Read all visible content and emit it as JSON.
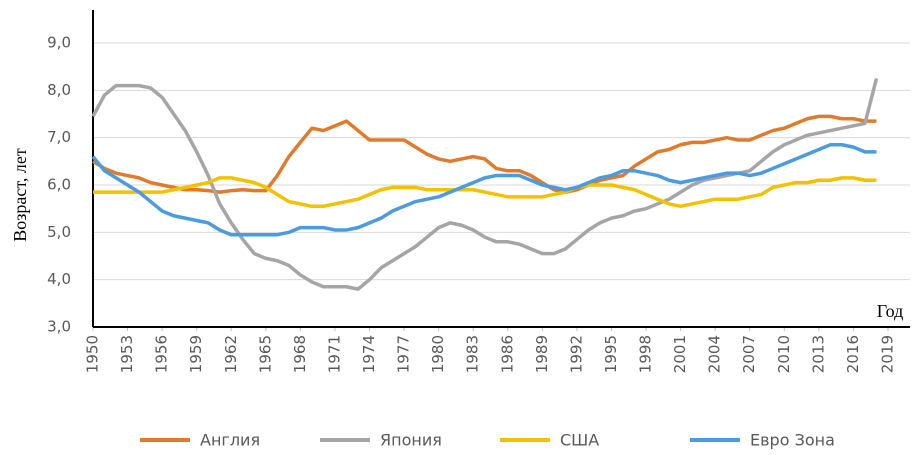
{
  "chart_data": {
    "type": "line",
    "y_label": "Возраст, лет",
    "x_label": "Год",
    "x": [
      1950,
      1951,
      1952,
      1953,
      1954,
      1955,
      1956,
      1957,
      1958,
      1959,
      1960,
      1961,
      1962,
      1963,
      1964,
      1965,
      1966,
      1967,
      1968,
      1969,
      1970,
      1971,
      1972,
      1973,
      1974,
      1975,
      1976,
      1977,
      1978,
      1979,
      1980,
      1981,
      1982,
      1983,
      1984,
      1985,
      1986,
      1987,
      1988,
      1989,
      1990,
      1991,
      1992,
      1993,
      1994,
      1995,
      1996,
      1997,
      1998,
      1999,
      2000,
      2001,
      2002,
      2003,
      2004,
      2005,
      2006,
      2007,
      2008,
      2009,
      2010,
      2011,
      2012,
      2013,
      2014,
      2015,
      2016,
      2017,
      2018
    ],
    "series": [
      {
        "name": "Англия",
        "color": "#e07b2c",
        "values": [
          6.5,
          6.35,
          6.25,
          6.2,
          6.15,
          6.05,
          6.0,
          5.95,
          5.9,
          5.9,
          5.88,
          5.85,
          5.88,
          5.9,
          5.88,
          5.88,
          6.2,
          6.6,
          6.9,
          7.2,
          7.15,
          7.25,
          7.35,
          7.15,
          6.95,
          6.95,
          6.95,
          6.95,
          6.8,
          6.65,
          6.55,
          6.5,
          6.55,
          6.6,
          6.55,
          6.35,
          6.3,
          6.3,
          6.2,
          6.05,
          5.9,
          5.85,
          5.9,
          6.0,
          6.1,
          6.15,
          6.2,
          6.4,
          6.55,
          6.7,
          6.75,
          6.85,
          6.9,
          6.9,
          6.95,
          7.0,
          6.95,
          6.95,
          7.05,
          7.15,
          7.2,
          7.3,
          7.4,
          7.45,
          7.45,
          7.4,
          7.4,
          7.35,
          7.35
        ]
      },
      {
        "name": "Япония",
        "color": "#a5a5a5",
        "values": [
          7.45,
          7.9,
          8.1,
          8.1,
          8.1,
          8.05,
          7.85,
          7.5,
          7.15,
          6.7,
          6.2,
          5.6,
          5.2,
          4.85,
          4.55,
          4.45,
          4.4,
          4.3,
          4.1,
          3.95,
          3.85,
          3.85,
          3.85,
          3.8,
          4.0,
          4.25,
          4.4,
          4.55,
          4.7,
          4.9,
          5.1,
          5.2,
          5.15,
          5.05,
          4.9,
          4.8,
          4.8,
          4.75,
          4.65,
          4.55,
          4.55,
          4.65,
          4.85,
          5.05,
          5.2,
          5.3,
          5.35,
          5.45,
          5.5,
          5.6,
          5.7,
          5.85,
          6.0,
          6.1,
          6.15,
          6.2,
          6.25,
          6.3,
          6.5,
          6.7,
          6.85,
          6.95,
          7.05,
          7.1,
          7.15,
          7.2,
          7.25,
          7.3,
          8.25
        ]
      },
      {
        "name": "США",
        "color": "#f2c200",
        "values": [
          5.85,
          5.85,
          5.85,
          5.85,
          5.85,
          5.85,
          5.85,
          5.9,
          5.95,
          6.0,
          6.05,
          6.15,
          6.15,
          6.1,
          6.05,
          5.95,
          5.8,
          5.65,
          5.6,
          5.55,
          5.55,
          5.6,
          5.65,
          5.7,
          5.8,
          5.9,
          5.95,
          5.95,
          5.95,
          5.9,
          5.9,
          5.9,
          5.9,
          5.9,
          5.85,
          5.8,
          5.75,
          5.75,
          5.75,
          5.75,
          5.8,
          5.85,
          5.95,
          6.0,
          6.0,
          6.0,
          5.95,
          5.9,
          5.8,
          5.7,
          5.6,
          5.55,
          5.6,
          5.65,
          5.7,
          5.7,
          5.7,
          5.75,
          5.8,
          5.95,
          6.0,
          6.05,
          6.05,
          6.1,
          6.1,
          6.15,
          6.15,
          6.1,
          6.1
        ]
      },
      {
        "name": "Евро Зона",
        "color": "#4a9be0",
        "values": [
          6.6,
          6.3,
          6.15,
          6.0,
          5.85,
          5.65,
          5.45,
          5.35,
          5.3,
          5.25,
          5.2,
          5.05,
          4.95,
          4.95,
          4.95,
          4.95,
          4.95,
          5.0,
          5.1,
          5.1,
          5.1,
          5.05,
          5.05,
          5.1,
          5.2,
          5.3,
          5.45,
          5.55,
          5.65,
          5.7,
          5.75,
          5.85,
          5.95,
          6.05,
          6.15,
          6.2,
          6.2,
          6.2,
          6.1,
          6.0,
          5.95,
          5.9,
          5.95,
          6.05,
          6.15,
          6.2,
          6.3,
          6.3,
          6.25,
          6.2,
          6.1,
          6.05,
          6.1,
          6.15,
          6.2,
          6.25,
          6.25,
          6.2,
          6.25,
          6.35,
          6.45,
          6.55,
          6.65,
          6.75,
          6.85,
          6.85,
          6.8,
          6.7,
          6.7
        ]
      }
    ],
    "xlim": [
      1950,
      2019
    ],
    "xticks": [
      1950,
      1953,
      1956,
      1959,
      1962,
      1965,
      1968,
      1971,
      1974,
      1977,
      1980,
      1983,
      1986,
      1989,
      1992,
      1995,
      1998,
      2001,
      2004,
      2007,
      2010,
      2013,
      2016,
      2019
    ],
    "ylim": [
      3,
      9
    ],
    "yticks": [
      {
        "value": 3,
        "label": "3,0"
      },
      {
        "value": 4,
        "label": "4,0"
      },
      {
        "value": 5,
        "label": "5,0"
      },
      {
        "value": 6,
        "label": "6,0"
      },
      {
        "value": 7,
        "label": "7,0"
      },
      {
        "value": 8,
        "label": "8,0"
      },
      {
        "value": 9,
        "label": "9,0"
      }
    ],
    "grid": true,
    "legend": "bottom"
  }
}
